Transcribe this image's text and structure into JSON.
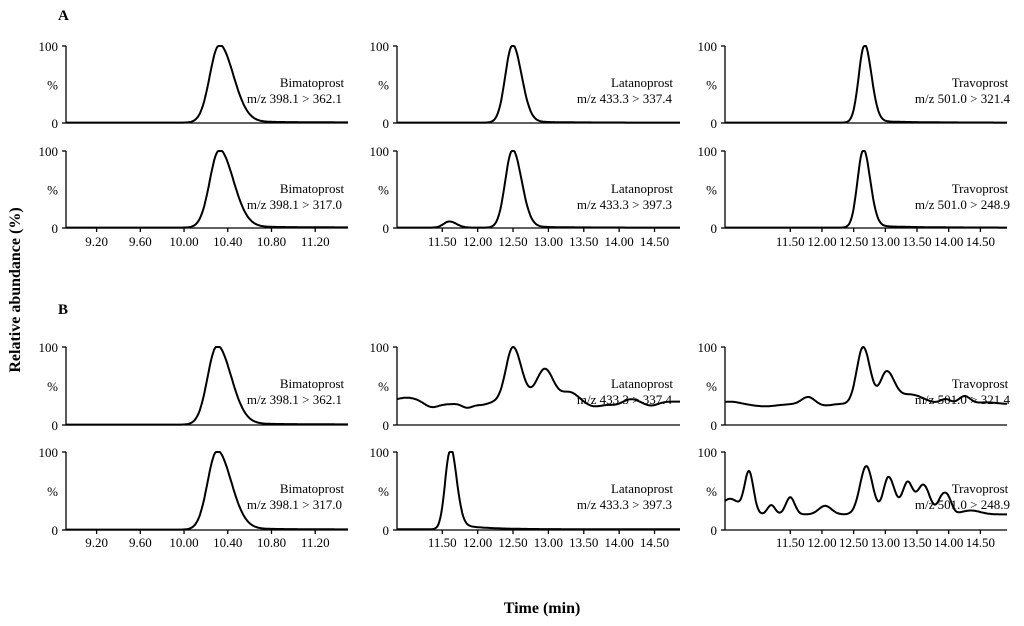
{
  "figure": {
    "ylabel": "Relative abundance (%)",
    "xlabel": "Time (min)",
    "sections": [
      "A",
      "B"
    ]
  },
  "chart_data": [
    {
      "id": "A-bimatoprost-362",
      "type": "line",
      "section": "A",
      "compound": "Bimatoprost",
      "transition": "m/z 398.1 > 362.1",
      "xticks": [
        "9.20",
        "9.60",
        "10.00",
        "10.40",
        "10.80",
        "11.20"
      ],
      "xlim": [
        8.92,
        11.5
      ],
      "ylim": [
        0,
        100
      ],
      "yticks": [
        "100",
        "%",
        "0"
      ],
      "baseline": 0.5,
      "peaks": [
        {
          "t": 10.32,
          "h": 100,
          "wl": 0.085,
          "wr": 0.13
        }
      ],
      "tail": {
        "t0": 10.32,
        "amp": 2,
        "tau": 0.6
      }
    },
    {
      "id": "A-latanoprost-337",
      "type": "line",
      "section": "A",
      "compound": "Latanoprost",
      "transition": "m/z 433.3 > 337.4",
      "xticks": [
        "11.50",
        "12.00",
        "12.50",
        "13.00",
        "13.50",
        "14.00",
        "14.50"
      ],
      "xlim": [
        10.86,
        14.86
      ],
      "ylim": [
        0,
        100
      ],
      "yticks": [
        "100",
        "%",
        "0"
      ],
      "baseline": 0.5,
      "peaks": [
        {
          "t": 12.49,
          "h": 100,
          "wl": 0.1,
          "wr": 0.13
        }
      ],
      "tail": {
        "t0": 12.49,
        "amp": 2,
        "tau": 0.5
      }
    },
    {
      "id": "A-travoprost-321",
      "type": "line",
      "section": "A",
      "compound": "Travoprost",
      "transition": "m/z 501.0 > 321.4",
      "xticks": [
        "11.50",
        "12.00",
        "12.50",
        "13.00",
        "13.50",
        "14.00",
        "14.50"
      ],
      "xlim": [
        10.47,
        14.92
      ],
      "ylim": [
        0,
        100
      ],
      "yticks": [
        "100",
        "%",
        "0"
      ],
      "baseline": 0.5,
      "peaks": [
        {
          "t": 12.67,
          "h": 100,
          "wl": 0.09,
          "wr": 0.11
        }
      ],
      "tail": {
        "t0": 12.67,
        "amp": 2.5,
        "tau": 0.6
      }
    },
    {
      "id": "A-bimatoprost-317",
      "type": "line",
      "section": "A",
      "compound": "Bimatoprost",
      "transition": "m/z 398.1 > 317.0",
      "xticks": [
        "9.20",
        "9.60",
        "10.00",
        "10.40",
        "10.80",
        "11.20"
      ],
      "xlim": [
        8.92,
        11.5
      ],
      "ylim": [
        0,
        100
      ],
      "yticks": [
        "100",
        "%",
        "0"
      ],
      "baseline": 0.5,
      "peaks": [
        {
          "t": 10.32,
          "h": 100,
          "wl": 0.085,
          "wr": 0.13
        }
      ],
      "tail": {
        "t0": 10.32,
        "amp": 2,
        "tau": 0.6
      }
    },
    {
      "id": "A-latanoprost-397",
      "type": "line",
      "section": "A",
      "compound": "Latanoprost",
      "transition": "m/z 433.3 > 397.3",
      "xticks": [
        "11.50",
        "12.00",
        "12.50",
        "13.00",
        "13.50",
        "14.00",
        "14.50"
      ],
      "xlim": [
        10.86,
        14.86
      ],
      "ylim": [
        0,
        100
      ],
      "yticks": [
        "100",
        "%",
        "0"
      ],
      "baseline": 0.5,
      "peaks": [
        {
          "t": 11.6,
          "h": 8,
          "wl": 0.08,
          "wr": 0.1
        },
        {
          "t": 12.49,
          "h": 100,
          "wl": 0.1,
          "wr": 0.13
        }
      ],
      "tail": {
        "t0": 12.49,
        "amp": 2,
        "tau": 0.5
      }
    },
    {
      "id": "A-travoprost-248",
      "type": "line",
      "section": "A",
      "compound": "Travoprost",
      "transition": "m/z 501.0 > 248.9",
      "xticks": [
        "11.50",
        "12.00",
        "12.50",
        "13.00",
        "13.50",
        "14.00",
        "14.50"
      ],
      "xlim": [
        10.47,
        14.92
      ],
      "ylim": [
        0,
        100
      ],
      "yticks": [
        "100",
        "%",
        "0"
      ],
      "baseline": 0.5,
      "peaks": [
        {
          "t": 12.65,
          "h": 100,
          "wl": 0.09,
          "wr": 0.11
        }
      ],
      "tail": {
        "t0": 12.65,
        "amp": 3,
        "tau": 0.6
      }
    },
    {
      "id": "B-bimatoprost-362",
      "type": "line",
      "section": "B",
      "compound": "Bimatoprost",
      "transition": "m/z 398.1 > 362.1",
      "xticks": [
        "9.20",
        "9.60",
        "10.00",
        "10.40",
        "10.80",
        "11.20"
      ],
      "xlim": [
        8.92,
        11.5
      ],
      "ylim": [
        0,
        100
      ],
      "yticks": [
        "100",
        "%",
        "0"
      ],
      "baseline": 0.5,
      "peaks": [
        {
          "t": 10.3,
          "h": 100,
          "wl": 0.085,
          "wr": 0.13
        }
      ],
      "tail": {
        "t0": 10.3,
        "amp": 2,
        "tau": 0.6
      }
    },
    {
      "id": "B-latanoprost-337",
      "type": "line",
      "section": "B",
      "compound": "Latanoprost",
      "transition": "m/z 433.3 > 337.4",
      "xticks": [
        "11.50",
        "12.00",
        "12.50",
        "13.00",
        "13.50",
        "14.00",
        "14.50"
      ],
      "xlim": [
        10.86,
        14.86
      ],
      "ylim": [
        0,
        100
      ],
      "yticks": [
        "100",
        "%",
        "0"
      ],
      "baseline": 30,
      "peaks": [
        {
          "t": 11.0,
          "h": 5,
          "wl": 0.15,
          "wr": 0.15
        },
        {
          "t": 11.35,
          "h": -7,
          "wl": 0.1,
          "wr": 0.1
        },
        {
          "t": 11.6,
          "h": -3,
          "wl": 0.12,
          "wr": 0.12
        },
        {
          "t": 11.85,
          "h": -7,
          "wl": 0.08,
          "wr": 0.08
        },
        {
          "t": 12.05,
          "h": -4,
          "wl": 0.1,
          "wr": 0.1
        },
        {
          "t": 12.5,
          "h": 70,
          "wl": 0.1,
          "wr": 0.12
        },
        {
          "t": 12.95,
          "h": 42,
          "wl": 0.12,
          "wr": 0.12
        },
        {
          "t": 13.3,
          "h": 12,
          "wl": 0.12,
          "wr": 0.12
        },
        {
          "t": 13.65,
          "h": -6,
          "wl": 0.12,
          "wr": 0.12
        },
        {
          "t": 13.95,
          "h": -4,
          "wl": 0.12,
          "wr": 0.12
        },
        {
          "t": 14.15,
          "h": 4,
          "wl": 0.1,
          "wr": 0.1
        },
        {
          "t": 14.45,
          "h": -5,
          "wl": 0.1,
          "wr": 0.1
        }
      ]
    },
    {
      "id": "B-travoprost-321",
      "type": "line",
      "section": "B",
      "compound": "Travoprost",
      "transition": "m/z 501.0 > 321.4",
      "xticks": [
        "11.50",
        "12.00",
        "12.50",
        "13.00",
        "13.50",
        "14.00",
        "14.50"
      ],
      "xlim": [
        10.47,
        14.92
      ],
      "ylim": [
        0,
        100
      ],
      "yticks": [
        "100",
        "%",
        "0"
      ],
      "baseline": 27,
      "peaks": [
        {
          "t": 10.55,
          "h": 3,
          "wl": 0.15,
          "wr": 0.15
        },
        {
          "t": 11.1,
          "h": -3,
          "wl": 0.2,
          "wr": 0.2
        },
        {
          "t": 11.78,
          "h": 9,
          "wl": 0.1,
          "wr": 0.1
        },
        {
          "t": 12.05,
          "h": -2,
          "wl": 0.1,
          "wr": 0.1
        },
        {
          "t": 12.65,
          "h": 73,
          "wl": 0.1,
          "wr": 0.11
        },
        {
          "t": 13.02,
          "h": 40,
          "wl": 0.1,
          "wr": 0.12
        },
        {
          "t": 13.4,
          "h": 12,
          "wl": 0.2,
          "wr": 0.2
        },
        {
          "t": 13.95,
          "h": 6,
          "wl": 0.08,
          "wr": 0.08
        },
        {
          "t": 14.25,
          "h": 10,
          "wl": 0.09,
          "wr": 0.09
        },
        {
          "t": 14.6,
          "h": 2,
          "wl": 0.15,
          "wr": 0.15
        }
      ]
    },
    {
      "id": "B-bimatoprost-317",
      "type": "line",
      "section": "B",
      "compound": "Bimatoprost",
      "transition": "m/z 398.1 > 317.0",
      "xticks": [
        "9.20",
        "9.60",
        "10.00",
        "10.40",
        "10.80",
        "11.20"
      ],
      "xlim": [
        8.92,
        11.5
      ],
      "ylim": [
        0,
        100
      ],
      "yticks": [
        "100",
        "%",
        "0"
      ],
      "baseline": 0.5,
      "peaks": [
        {
          "t": 10.3,
          "h": 100,
          "wl": 0.085,
          "wr": 0.13
        }
      ],
      "tail": {
        "t0": 10.3,
        "amp": 2,
        "tau": 0.6
      }
    },
    {
      "id": "B-latanoprost-397",
      "type": "line",
      "section": "B",
      "compound": "Latanoprost",
      "transition": "m/z 433.3 > 397.3",
      "xticks": [
        "11.50",
        "12.00",
        "12.50",
        "13.00",
        "13.50",
        "14.00",
        "14.50"
      ],
      "xlim": [
        10.86,
        14.86
      ],
      "ylim": [
        0,
        100
      ],
      "yticks": [
        "100",
        "%",
        "0"
      ],
      "baseline": 1,
      "peaks": [
        {
          "t": 11.61,
          "h": 100,
          "wl": 0.07,
          "wr": 0.09
        }
      ],
      "tail": {
        "t0": 11.61,
        "amp": 8,
        "tau": 0.35
      }
    },
    {
      "id": "B-travoprost-248",
      "type": "line",
      "section": "B",
      "compound": "Travoprost",
      "transition": "m/z 501.0 > 248.9",
      "xticks": [
        "11.50",
        "12.00",
        "12.50",
        "13.00",
        "13.50",
        "14.00",
        "14.50"
      ],
      "xlim": [
        10.47,
        14.92
      ],
      "ylim": [
        0,
        100
      ],
      "yticks": [
        "100",
        "%",
        "0"
      ],
      "baseline": 20,
      "peaks": [
        {
          "t": 10.55,
          "h": 20,
          "wl": 0.15,
          "wr": 0.15
        },
        {
          "t": 10.85,
          "h": 53,
          "wl": 0.07,
          "wr": 0.07
        },
        {
          "t": 11.2,
          "h": 12,
          "wl": 0.06,
          "wr": 0.06
        },
        {
          "t": 11.5,
          "h": 22,
          "wl": 0.07,
          "wr": 0.07
        },
        {
          "t": 12.05,
          "h": 11,
          "wl": 0.1,
          "wr": 0.1
        },
        {
          "t": 12.7,
          "h": 62,
          "wl": 0.1,
          "wr": 0.1
        },
        {
          "t": 13.05,
          "h": 48,
          "wl": 0.08,
          "wr": 0.1
        },
        {
          "t": 13.35,
          "h": 40,
          "wl": 0.08,
          "wr": 0.08
        },
        {
          "t": 13.6,
          "h": 38,
          "wl": 0.1,
          "wr": 0.1
        },
        {
          "t": 13.9,
          "h": 22,
          "wl": 0.07,
          "wr": 0.07
        },
        {
          "t": 14.0,
          "h": 15,
          "wl": 0.06,
          "wr": 0.06
        },
        {
          "t": 14.35,
          "h": 5,
          "wl": 0.15,
          "wr": 0.15
        }
      ]
    }
  ]
}
